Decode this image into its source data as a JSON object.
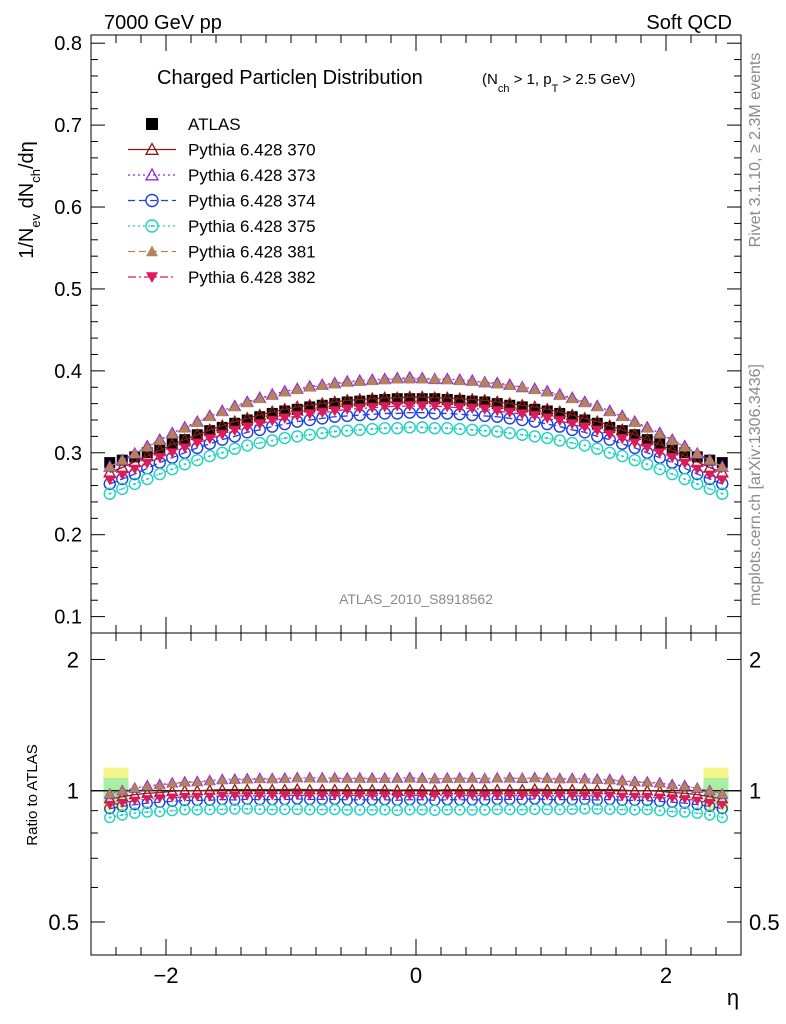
{
  "header": {
    "left": "7000 GeV pp",
    "right": "Soft QCD"
  },
  "side_labels": {
    "rivet": "Rivet 3.1.10, ≥ 2.3M events",
    "mcplots": "mcplots.cern.ch [arXiv:1306.3436]"
  },
  "chart_data": [
    {
      "type": "scatter",
      "title": "Charged Particle η Distribution",
      "title_main": "Charged Particle",
      "title_eta": "η",
      "title_word": " Distribution",
      "subtitle_parts": {
        "a": "(N",
        "a_sub": "ch",
        "b": " > 1, p",
        "b_sub": "T",
        "c": " > 2.5 GeV)"
      },
      "ylabel_parts": {
        "a": "1/N",
        "a_sub": "ev",
        "b": " dN",
        "b_sub": "ch",
        "c": "/dη"
      },
      "xlabel": "η",
      "watermark": "ATLAS_2010_S8918562",
      "xlim": [
        -2.6,
        2.6
      ],
      "ylim": [
        0.08,
        0.81
      ],
      "yticks": [
        "0.1",
        "0.2",
        "0.3",
        "0.4",
        "0.5",
        "0.6",
        "0.7",
        "0.8"
      ],
      "ytick_values": [
        0.1,
        0.2,
        0.3,
        0.4,
        0.5,
        0.6,
        0.7,
        0.8
      ],
      "xticks": [
        "−2",
        "0",
        "2"
      ],
      "xtick_values": [
        -2,
        0,
        2
      ],
      "legend_position": "top-left",
      "x": [
        -2.45,
        -2.35,
        -2.25,
        -2.15,
        -2.05,
        -1.95,
        -1.85,
        -1.75,
        -1.65,
        -1.55,
        -1.45,
        -1.35,
        -1.25,
        -1.15,
        -1.05,
        -0.95,
        -0.85,
        -0.75,
        -0.65,
        -0.55,
        -0.45,
        -0.35,
        -0.25,
        -0.15,
        -0.05,
        0.05,
        0.15,
        0.25,
        0.35,
        0.45,
        0.55,
        0.65,
        0.75,
        0.85,
        0.95,
        1.05,
        1.15,
        1.25,
        1.35,
        1.45,
        1.55,
        1.65,
        1.75,
        1.85,
        1.95,
        2.05,
        2.15,
        2.25,
        2.35,
        2.45
      ],
      "series": [
        {
          "name": "ATLAS",
          "color": "#000000",
          "marker": "filled-square",
          "values": [
            0.288,
            0.291,
            0.295,
            0.3,
            0.306,
            0.311,
            0.316,
            0.322,
            0.327,
            0.331,
            0.336,
            0.34,
            0.344,
            0.348,
            0.351,
            0.353,
            0.356,
            0.358,
            0.36,
            0.362,
            0.363,
            0.364,
            0.365,
            0.366,
            0.366,
            0.366,
            0.366,
            0.365,
            0.364,
            0.363,
            0.362,
            0.36,
            0.358,
            0.356,
            0.353,
            0.351,
            0.348,
            0.344,
            0.34,
            0.336,
            0.331,
            0.327,
            0.322,
            0.316,
            0.311,
            0.306,
            0.3,
            0.295,
            0.291,
            0.288
          ]
        },
        {
          "name": "Pythia 6.428 370",
          "color": "#8b1a1a",
          "marker": "open-triangle-up",
          "line": "solid",
          "values": [
            0.276,
            0.282,
            0.289,
            0.296,
            0.303,
            0.31,
            0.316,
            0.322,
            0.328,
            0.333,
            0.338,
            0.342,
            0.346,
            0.35,
            0.353,
            0.356,
            0.358,
            0.36,
            0.362,
            0.364,
            0.365,
            0.366,
            0.367,
            0.367,
            0.368,
            0.368,
            0.367,
            0.367,
            0.366,
            0.365,
            0.364,
            0.362,
            0.36,
            0.358,
            0.356,
            0.353,
            0.35,
            0.346,
            0.342,
            0.338,
            0.333,
            0.328,
            0.322,
            0.316,
            0.31,
            0.303,
            0.296,
            0.289,
            0.282,
            0.276
          ]
        },
        {
          "name": "Pythia 6.428 373",
          "color": "#8a2be2",
          "marker": "open-triangle-up",
          "line": "dotted",
          "values": [
            0.283,
            0.291,
            0.299,
            0.308,
            0.316,
            0.324,
            0.331,
            0.338,
            0.345,
            0.351,
            0.357,
            0.362,
            0.367,
            0.371,
            0.375,
            0.378,
            0.381,
            0.383,
            0.385,
            0.387,
            0.388,
            0.389,
            0.39,
            0.391,
            0.392,
            0.391,
            0.39,
            0.39,
            0.389,
            0.388,
            0.386,
            0.385,
            0.383,
            0.38,
            0.378,
            0.375,
            0.371,
            0.367,
            0.362,
            0.357,
            0.351,
            0.345,
            0.338,
            0.331,
            0.324,
            0.316,
            0.308,
            0.299,
            0.291,
            0.283
          ]
        },
        {
          "name": "Pythia 6.428 374",
          "color": "#1f3fe0",
          "marker": "open-circle",
          "line": "dashed",
          "values": [
            0.262,
            0.268,
            0.274,
            0.281,
            0.288,
            0.294,
            0.3,
            0.306,
            0.311,
            0.316,
            0.32,
            0.325,
            0.328,
            0.332,
            0.335,
            0.338,
            0.34,
            0.342,
            0.344,
            0.345,
            0.346,
            0.347,
            0.348,
            0.348,
            0.349,
            0.349,
            0.348,
            0.348,
            0.347,
            0.346,
            0.345,
            0.344,
            0.342,
            0.34,
            0.338,
            0.335,
            0.332,
            0.328,
            0.325,
            0.32,
            0.316,
            0.311,
            0.306,
            0.3,
            0.294,
            0.288,
            0.281,
            0.274,
            0.268,
            0.262
          ]
        },
        {
          "name": "Pythia 6.428 375",
          "color": "#1fd1c0",
          "marker": "open-circle-dot",
          "line": "dotted",
          "values": [
            0.25,
            0.256,
            0.262,
            0.268,
            0.274,
            0.28,
            0.286,
            0.291,
            0.296,
            0.3,
            0.305,
            0.309,
            0.312,
            0.315,
            0.318,
            0.32,
            0.322,
            0.324,
            0.326,
            0.327,
            0.328,
            0.329,
            0.33,
            0.33,
            0.331,
            0.331,
            0.33,
            0.33,
            0.329,
            0.328,
            0.327,
            0.326,
            0.324,
            0.322,
            0.32,
            0.318,
            0.315,
            0.312,
            0.309,
            0.305,
            0.3,
            0.296,
            0.291,
            0.286,
            0.28,
            0.274,
            0.268,
            0.262,
            0.256,
            0.25
          ]
        },
        {
          "name": "Pythia 6.428 381",
          "color": "#b5835a",
          "marker": "filled-triangle-up",
          "line": "dashed",
          "values": [
            0.283,
            0.291,
            0.299,
            0.307,
            0.315,
            0.323,
            0.33,
            0.337,
            0.344,
            0.35,
            0.356,
            0.361,
            0.366,
            0.37,
            0.374,
            0.377,
            0.38,
            0.382,
            0.384,
            0.386,
            0.387,
            0.388,
            0.389,
            0.39,
            0.39,
            0.39,
            0.39,
            0.389,
            0.388,
            0.387,
            0.386,
            0.384,
            0.382,
            0.38,
            0.377,
            0.374,
            0.37,
            0.366,
            0.361,
            0.356,
            0.35,
            0.344,
            0.337,
            0.33,
            0.323,
            0.315,
            0.307,
            0.299,
            0.291,
            0.283
          ]
        },
        {
          "name": "Pythia 6.428 382",
          "color": "#e0195a",
          "marker": "filled-triangle-down",
          "line": "dashdot",
          "values": [
            0.267,
            0.273,
            0.28,
            0.287,
            0.294,
            0.3,
            0.306,
            0.312,
            0.317,
            0.322,
            0.327,
            0.331,
            0.335,
            0.339,
            0.342,
            0.345,
            0.347,
            0.349,
            0.351,
            0.353,
            0.354,
            0.355,
            0.356,
            0.357,
            0.357,
            0.357,
            0.357,
            0.356,
            0.355,
            0.354,
            0.353,
            0.351,
            0.349,
            0.347,
            0.345,
            0.342,
            0.339,
            0.335,
            0.331,
            0.327,
            0.322,
            0.317,
            0.312,
            0.306,
            0.3,
            0.294,
            0.287,
            0.28,
            0.273,
            0.267
          ]
        }
      ]
    },
    {
      "type": "scatter",
      "ylabel": "Ratio to ATLAS",
      "xlabel": "η",
      "ylim": [
        0.42,
        2.3
      ],
      "scale": "log",
      "yticks": [
        "0.5",
        "1",
        "2"
      ],
      "ytick_values": [
        0.5,
        1,
        2
      ],
      "xticks": [
        "−2",
        "0",
        "2"
      ],
      "xtick_values": [
        -2,
        0,
        2
      ],
      "reference": 1
    }
  ]
}
